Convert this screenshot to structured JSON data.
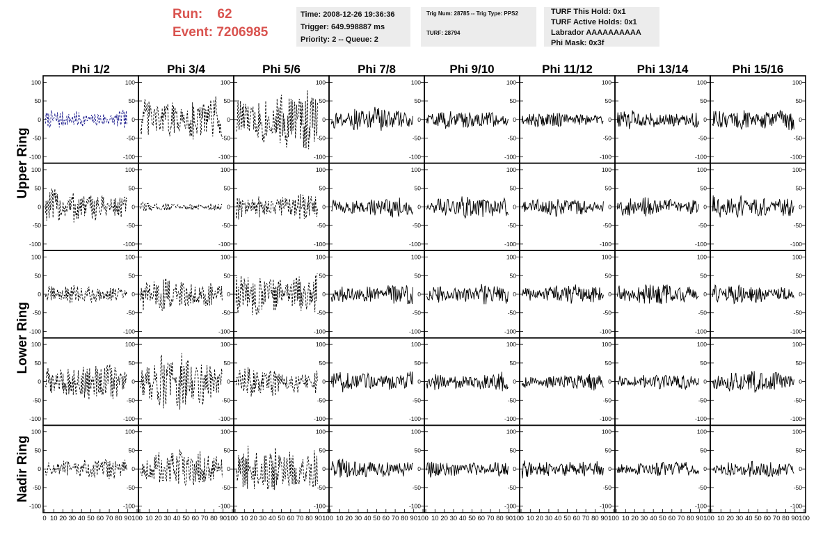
{
  "run": {
    "run_label": "Run:",
    "run_value": "62",
    "event_label": "Event:",
    "event_value": "7206985",
    "color": "#d9534f"
  },
  "info_time": {
    "line1": "Time: 2008-12-26 19:36:36",
    "line2": "Trigger: 649.998887 ms",
    "line3": "Priority: 2 -- Queue: 2"
  },
  "info_trig": {
    "line1": "Trig Num: 28785 -- Trig Type: PPS2",
    "line2": "TURF: 28794"
  },
  "info_turf": {
    "line1": "TURF This Hold: 0x1",
    "line2": "TURF Active Holds: 0x1",
    "line3": "Labrador AAAAAAAAAA",
    "line4": "Phi Mask: 0x3f"
  },
  "chart_data": {
    "type": "line",
    "columns": [
      "Phi 1/2",
      "Phi 3/4",
      "Phi 5/6",
      "Phi 7/8",
      "Phi 9/10",
      "Phi 11/12",
      "Phi 13/14",
      "Phi 15/16"
    ],
    "row_groups": [
      {
        "label": "Upper Ring",
        "rows": [
          0,
          1
        ]
      },
      {
        "label": "Lower Ring",
        "rows": [
          2,
          3
        ]
      },
      {
        "label": "Nadir Ring",
        "rows": [
          4
        ]
      }
    ],
    "xlim": [
      0,
      100
    ],
    "ylim": [
      -110,
      110
    ],
    "y_ticks": [
      100,
      50,
      0,
      -50,
      -100
    ],
    "x_tick_labels": [
      "0",
      "10",
      "20",
      "30",
      "40",
      "50",
      "60",
      "70",
      "80",
      "90",
      "100"
    ],
    "colors": {
      "default": "#000000",
      "highlight": "#1a1a8c"
    },
    "traces": [
      [
        {
          "amp": 18,
          "style": "dashed",
          "color": "highlight"
        },
        {
          "amp": 42,
          "style": "dashed"
        },
        {
          "amp": 55,
          "style": "dashed"
        },
        {
          "amp": 22,
          "style": "solid"
        },
        {
          "amp": 17,
          "style": "solid"
        },
        {
          "amp": 14,
          "style": "solid"
        },
        {
          "amp": 17,
          "style": "solid"
        },
        {
          "amp": 22,
          "style": "solid"
        }
      ],
      [
        {
          "amp": 32,
          "style": "dashed"
        },
        {
          "amp": 8,
          "style": "dashed"
        },
        {
          "amp": 25,
          "style": "dashed"
        },
        {
          "amp": 19,
          "style": "solid"
        },
        {
          "amp": 20,
          "style": "solid"
        },
        {
          "amp": 17,
          "style": "solid"
        },
        {
          "amp": 17,
          "style": "solid"
        },
        {
          "amp": 23,
          "style": "solid"
        }
      ],
      [
        {
          "amp": 16,
          "style": "dashed"
        },
        {
          "amp": 30,
          "style": "dashed"
        },
        {
          "amp": 42,
          "style": "dashed"
        },
        {
          "amp": 19,
          "style": "solid"
        },
        {
          "amp": 19,
          "style": "solid"
        },
        {
          "amp": 17,
          "style": "solid"
        },
        {
          "amp": 20,
          "style": "solid"
        },
        {
          "amp": 17,
          "style": "solid"
        }
      ],
      [
        {
          "amp": 33,
          "style": "dashed"
        },
        {
          "amp": 50,
          "style": "dashed"
        },
        {
          "amp": 28,
          "style": "dashed"
        },
        {
          "amp": 19,
          "style": "solid"
        },
        {
          "amp": 17,
          "style": "solid"
        },
        {
          "amp": 15,
          "style": "solid"
        },
        {
          "amp": 14,
          "style": "solid"
        },
        {
          "amp": 19,
          "style": "solid"
        }
      ],
      [
        {
          "amp": 20,
          "style": "dashed"
        },
        {
          "amp": 36,
          "style": "dashed"
        },
        {
          "amp": 45,
          "style": "dashed"
        },
        {
          "amp": 18,
          "style": "solid"
        },
        {
          "amp": 15,
          "style": "solid"
        },
        {
          "amp": 17,
          "style": "solid"
        },
        {
          "amp": 14,
          "style": "solid"
        },
        {
          "amp": 15,
          "style": "solid"
        }
      ]
    ]
  }
}
